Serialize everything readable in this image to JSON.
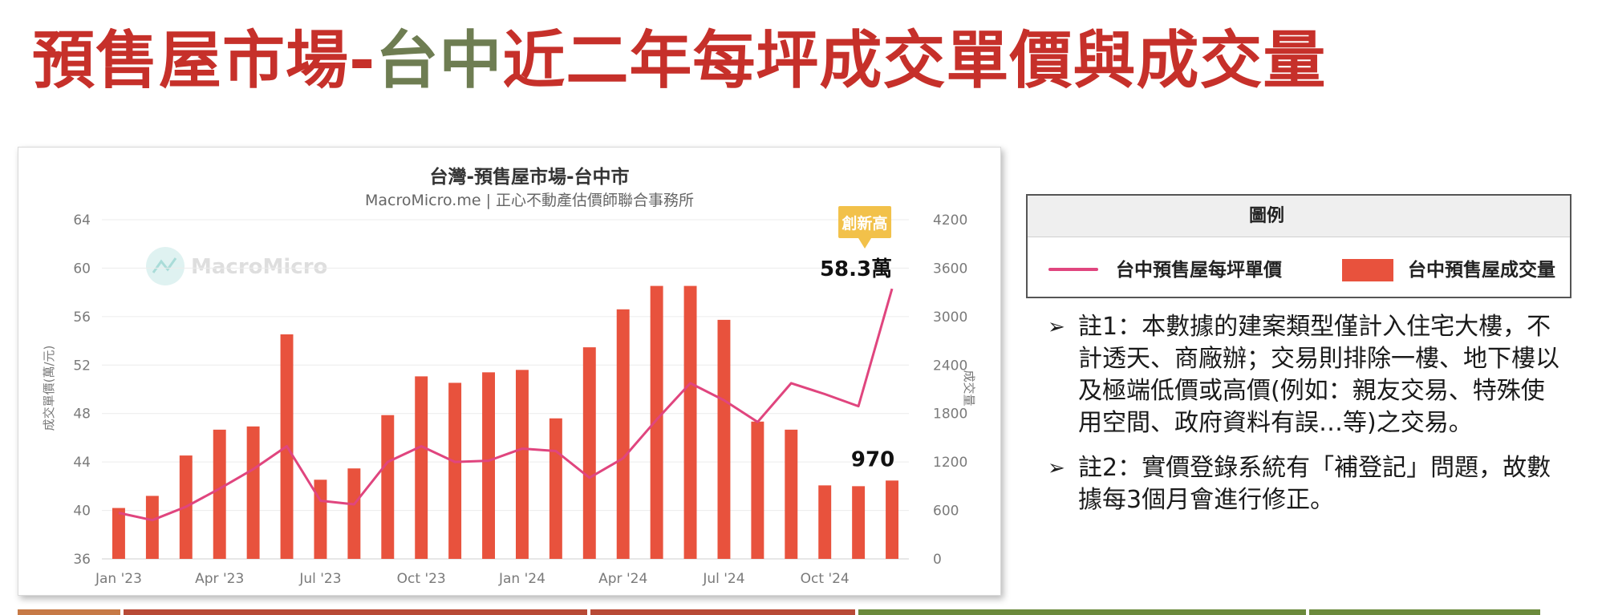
{
  "slide_title": {
    "part1": "預售屋市場-",
    "part2": "台中",
    "part3": "近二年每坪成交單價與成交量"
  },
  "colors": {
    "title_red": "#c6302a",
    "title_green": "#6e7d52",
    "bar": "#e8523d",
    "line": "#e0457e",
    "badge": "#f2c14a",
    "axis_text": "#7a7a7a",
    "strip_orange": "#c77a46",
    "strip_red": "#b84a36",
    "strip_green": "#6b8a3c"
  },
  "chart_data": {
    "type": "bar",
    "title": "台灣-預售屋市場-台中市",
    "subtitle": "MacroMicro.me | 正心不動產估價師聯合事務所",
    "watermark": "MacroMicro",
    "ylabel_left": "成交單價(萬/元)",
    "ylabel_right": "成交量",
    "ylim_left": [
      36,
      64
    ],
    "ylim_right": [
      0,
      4200
    ],
    "yticks_left": [
      "64",
      "60",
      "56",
      "52",
      "48",
      "44",
      "40",
      "36"
    ],
    "yticks_right": [
      "4200",
      "3600",
      "3000",
      "2400",
      "1800",
      "1200",
      "600",
      "0"
    ],
    "xtick_labels": [
      "Jan '23",
      "Apr '23",
      "Jul '23",
      "Oct '23",
      "Jan '24",
      "Apr '24",
      "Jul '24",
      "Oct '24"
    ],
    "xtick_indices": [
      0,
      3,
      6,
      9,
      12,
      15,
      18,
      21
    ],
    "categories": [
      "2023-01",
      "2023-02",
      "2023-03",
      "2023-04",
      "2023-05",
      "2023-06",
      "2023-07",
      "2023-08",
      "2023-09",
      "2023-10",
      "2023-11",
      "2023-12",
      "2024-01",
      "2024-02",
      "2024-03",
      "2024-04",
      "2024-05",
      "2024-06",
      "2024-07",
      "2024-08",
      "2024-09",
      "2024-10",
      "2024-11",
      "2024-12"
    ],
    "series": [
      {
        "name": "台中預售屋成交量",
        "axis": "right",
        "kind": "bar",
        "values": [
          630,
          780,
          1280,
          1600,
          1640,
          2780,
          980,
          1120,
          1780,
          2260,
          2180,
          2310,
          2340,
          1740,
          2620,
          3090,
          3380,
          3380,
          2960,
          1700,
          1600,
          910,
          900,
          970
        ]
      },
      {
        "name": "台中預售屋每坪單價",
        "axis": "left",
        "kind": "line",
        "values": [
          39.8,
          39.2,
          40.3,
          41.8,
          43.4,
          45.3,
          40.8,
          40.5,
          44.0,
          45.3,
          44.0,
          44.1,
          45.1,
          44.9,
          42.7,
          44.3,
          47.5,
          50.5,
          49.1,
          47.3,
          50.5,
          49.6,
          48.6,
          58.3
        ]
      }
    ],
    "annotations": {
      "badge": "創新高",
      "price_label": "58.3萬",
      "volume_label": "970"
    }
  },
  "legend": {
    "title": "圖例",
    "line_label": "台中預售屋每坪單價",
    "bar_label": "台中預售屋成交量"
  },
  "notes": [
    {
      "bullet": "➢",
      "text": "註1：本數據的建案類型僅計入住宅大樓，不計透天、商廠辦；交易則排除一樓、地下樓以及極端低價或高價(例如：親友交易、特殊使用空間、政府資料有誤…等)之交易。"
    },
    {
      "bullet": "➢",
      "text": "註2：實價登錄系統有「補登記」問題，故數據每3個月會進行修正。"
    }
  ]
}
